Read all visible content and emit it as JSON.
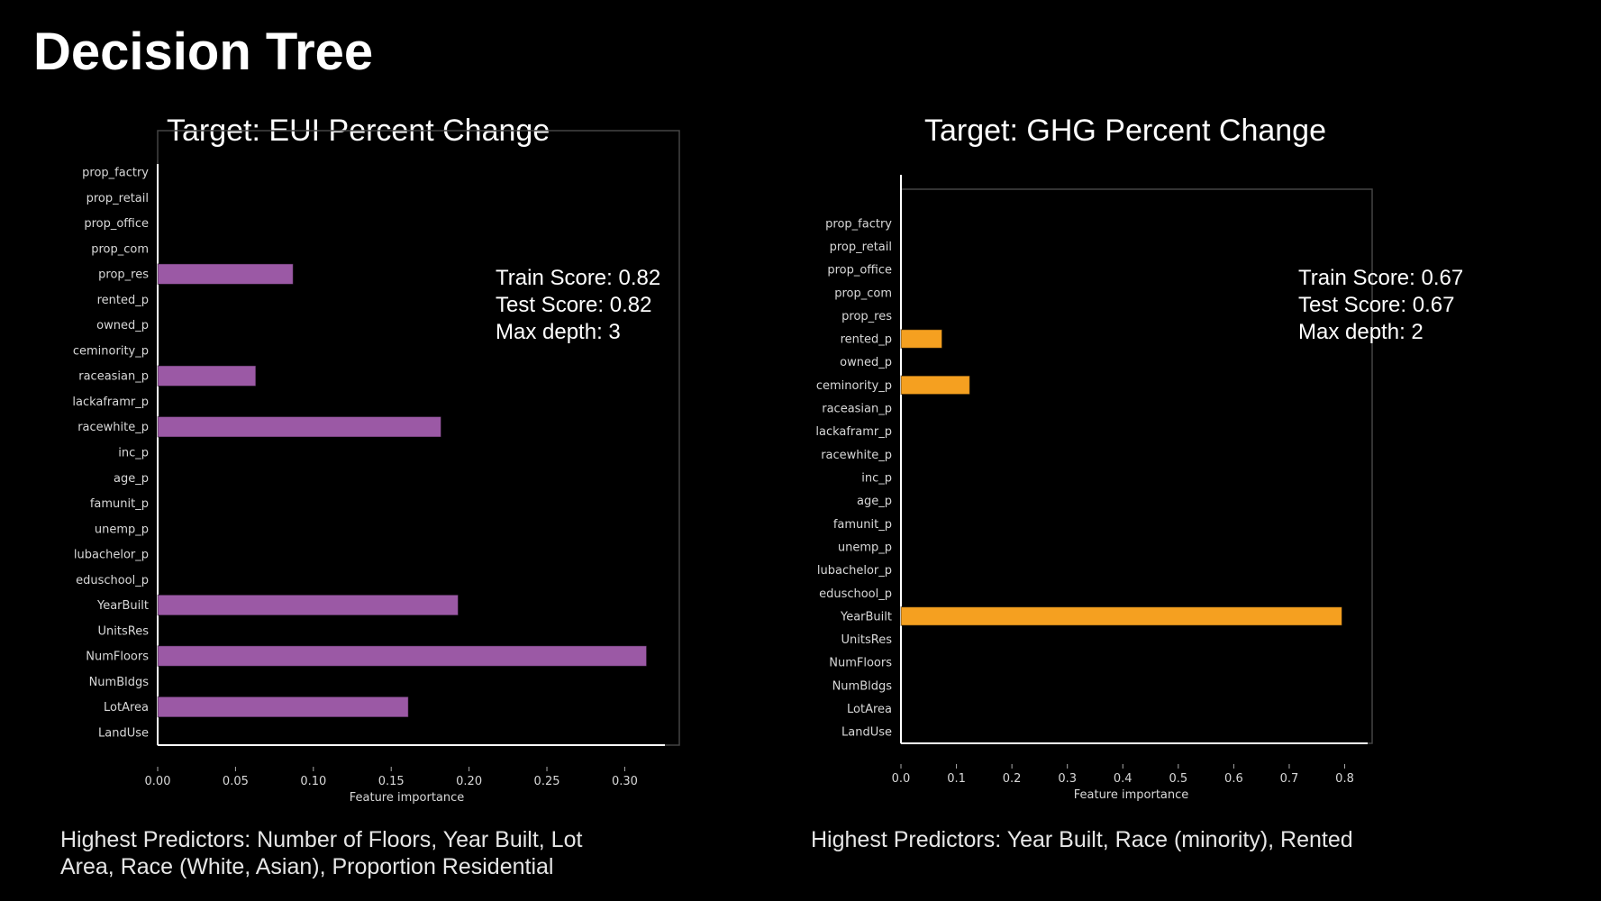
{
  "slide": {
    "title": "Decision Tree"
  },
  "charts": [
    {
      "title": "Target: EUI Percent Change",
      "scores": {
        "train": "Train Score:  0.82",
        "test": "Test Score:  0.82",
        "depth": "Max depth: 3"
      },
      "caption_line1": "Highest Predictors: Number of Floors, Year Built, Lot",
      "caption_line2": "Area, Race (White, Asian), Proportion Residential"
    },
    {
      "title": "Target: GHG Percent Change",
      "scores": {
        "train": "Train Score:  0.67",
        "test": "Test Score:  0.67",
        "depth": "Max depth: 2"
      },
      "caption_line1": "Highest Predictors: Year Built, Race (minority), Rented",
      "caption_line2": ""
    }
  ],
  "chart_data": [
    {
      "type": "bar",
      "orientation": "horizontal",
      "title": "Target: EUI Percent Change",
      "xlabel": "Feature importance",
      "ylabel": "",
      "categories": [
        "prop_factry",
        "prop_retail",
        "prop_office",
        "prop_com",
        "prop_res",
        "rented_p",
        "owned_p",
        "ceminority_p",
        "raceasian_p",
        "lackaframr_p",
        "racewhite_p",
        "inc_p",
        "age_p",
        "famunit_p",
        "unemp_p",
        "lubachelor_p",
        "eduschool_p",
        "YearBuilt",
        "UnitsRes",
        "NumFloors",
        "NumBldgs",
        "LotArea",
        "LandUse"
      ],
      "values": [
        0,
        0,
        0,
        0,
        0.087,
        0,
        0,
        0,
        0.063,
        0,
        0.182,
        0,
        0,
        0,
        0,
        0,
        0,
        0.193,
        0,
        0.314,
        0,
        0.161,
        0
      ],
      "xlim": [
        0,
        0.32
      ],
      "xticks": [
        0.0,
        0.05,
        0.1,
        0.15,
        0.2,
        0.25,
        0.3
      ],
      "xtick_labels": [
        "0.00",
        "0.05",
        "0.10",
        "0.15",
        "0.20",
        "0.25",
        "0.30"
      ],
      "color": "#9b59a5",
      "grid": false
    },
    {
      "type": "bar",
      "orientation": "horizontal",
      "title": "Target: GHG Percent Change",
      "xlabel": "Feature importance",
      "ylabel": "",
      "categories": [
        "prop_factry",
        "prop_retail",
        "prop_office",
        "prop_com",
        "prop_res",
        "rented_p",
        "owned_p",
        "ceminority_p",
        "raceasian_p",
        "lackaframr_p",
        "racewhite_p",
        "inc_p",
        "age_p",
        "famunit_p",
        "unemp_p",
        "lubachelor_p",
        "eduschool_p",
        "YearBuilt",
        "UnitsRes",
        "NumFloors",
        "NumBldgs",
        "LotArea",
        "LandUse"
      ],
      "values": [
        0,
        0,
        0,
        0,
        0,
        0.074,
        0,
        0.124,
        0,
        0,
        0,
        0,
        0,
        0,
        0,
        0,
        0,
        0.795,
        0,
        0,
        0,
        0,
        0
      ],
      "xlim": [
        0,
        0.83
      ],
      "xticks": [
        0.0,
        0.1,
        0.2,
        0.3,
        0.4,
        0.5,
        0.6,
        0.7,
        0.8
      ],
      "xtick_labels": [
        "0.0",
        "0.1",
        "0.2",
        "0.3",
        "0.4",
        "0.5",
        "0.6",
        "0.7",
        "0.8"
      ],
      "color": "#f5a020",
      "grid": false
    }
  ]
}
